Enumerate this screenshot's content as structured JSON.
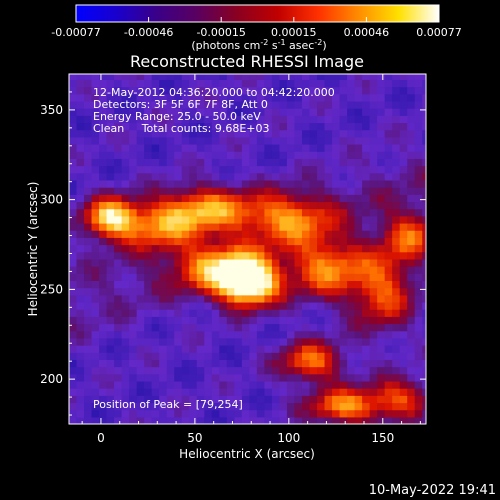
{
  "colorbar": {
    "ticks": [
      "-0.00077",
      "-0.00046",
      "-0.00015",
      "0.00015",
      "0.00046",
      "0.00077"
    ],
    "units_pre": "(photons cm",
    "units_exp1": "-2",
    "units_mid": " s",
    "units_exp2": "-1",
    "units_post": " asec",
    "units_exp3": "-2",
    "units_close": ")",
    "stops": [
      "#0000ff",
      "#1a00cc",
      "#3a0088",
      "#5a0060",
      "#8a0020",
      "#c00000",
      "#ff3000",
      "#ff8c00",
      "#ffe000",
      "#ffffff"
    ]
  },
  "chart_data": {
    "type": "heatmap",
    "title": "Reconstructed RHESSI Image",
    "xlabel": "Heliocentric X (arcsec)",
    "ylabel": "Heliocentric Y (arcsec)",
    "xlim": [
      -17,
      173
    ],
    "ylim": [
      175,
      370
    ],
    "xticks": [
      0,
      50,
      100,
      150
    ],
    "yticks": [
      200,
      250,
      300,
      350
    ],
    "info": [
      "12-May-2012 04:36:20.000 to 04:42:20.000",
      "Detectors: 3F 5F 6F 7F 8F, Att 0",
      "Energy Range: 25.0 - 50.0 keV",
      "Clean     Total counts: 9.68E+03"
    ],
    "peak_label": "Position of Peak = [79,254]",
    "peak": [
      79,
      254
    ],
    "sources": [
      {
        "x": 79,
        "y": 254,
        "amp": 1.0,
        "sx": 11,
        "sy": 9
      },
      {
        "x": 62,
        "y": 262,
        "amp": 0.55,
        "sx": 16,
        "sy": 10
      },
      {
        "x": 5,
        "y": 290,
        "amp": 0.75,
        "sx": 10,
        "sy": 8
      },
      {
        "x": 30,
        "y": 285,
        "amp": 0.45,
        "sx": 14,
        "sy": 9
      },
      {
        "x": 55,
        "y": 295,
        "amp": 0.6,
        "sx": 18,
        "sy": 9
      },
      {
        "x": 100,
        "y": 290,
        "amp": 0.5,
        "sx": 16,
        "sy": 10
      },
      {
        "x": 120,
        "y": 262,
        "amp": 0.55,
        "sx": 14,
        "sy": 12
      },
      {
        "x": 150,
        "y": 250,
        "amp": 0.5,
        "sx": 12,
        "sy": 16
      },
      {
        "x": 165,
        "y": 280,
        "amp": 0.45,
        "sx": 10,
        "sy": 10
      },
      {
        "x": 112,
        "y": 210,
        "amp": 0.55,
        "sx": 12,
        "sy": 8
      },
      {
        "x": 130,
        "y": 185,
        "amp": 0.6,
        "sx": 14,
        "sy": 7
      },
      {
        "x": 160,
        "y": 190,
        "amp": 0.45,
        "sx": 12,
        "sy": 8
      }
    ]
  },
  "footer": {
    "timestamp": "10-May-2022 19:41"
  }
}
